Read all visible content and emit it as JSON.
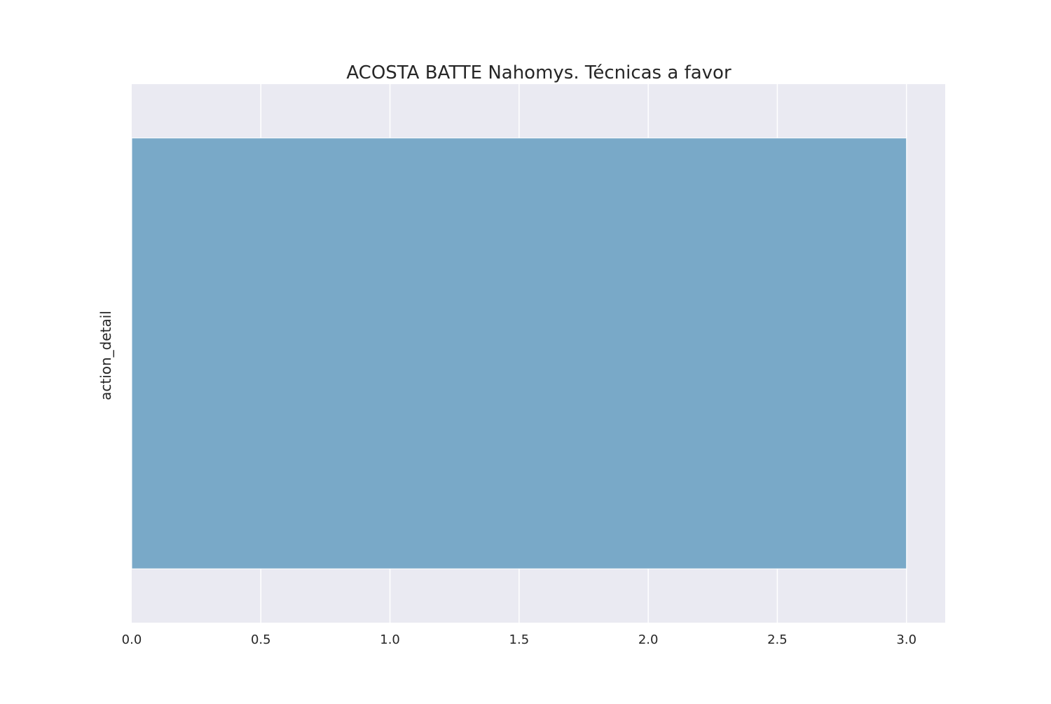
{
  "chart_data": {
    "type": "bar",
    "orientation": "horizontal",
    "title": "ACOSTA BATTE Nahomys. Técnicas a favor",
    "xlabel": "",
    "ylabel": "action_detail",
    "categories": [
      ""
    ],
    "values": [
      3
    ],
    "xlim": [
      0,
      3.15
    ],
    "xticks": [
      "0.0",
      "0.5",
      "1.0",
      "1.5",
      "2.0",
      "2.5",
      "3.0"
    ],
    "grid": true,
    "legend": "none",
    "colors": {
      "bar": "#79a9c8",
      "plot_background": "#eaeaf2",
      "grid": "#ffffff",
      "text": "#262626"
    }
  }
}
